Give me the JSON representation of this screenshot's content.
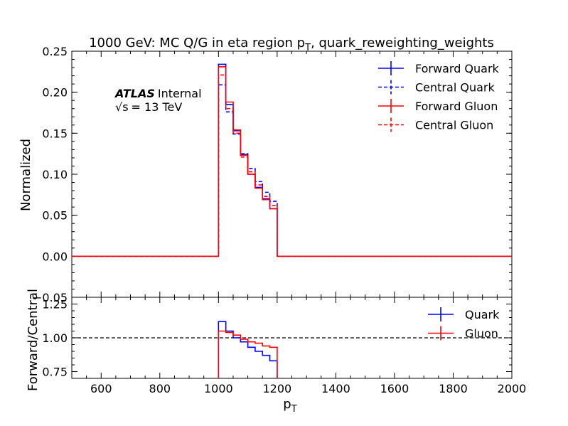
{
  "chart_data": [
    {
      "type": "line",
      "panel": "main",
      "title": {
        "main": "1000 GeV: MC Q/G in eta region p",
        "sub": "T",
        "rest": ", quark_reweighting_weights"
      },
      "ylabel": "Normalized",
      "xlim": [
        500,
        2000
      ],
      "ylim": [
        -0.05,
        0.25
      ],
      "y_ticks": [
        -0.05,
        0.0,
        0.05,
        0.1,
        0.15,
        0.2,
        0.25
      ],
      "y_tick_labels": [
        "−0.05",
        "0.00",
        "0.05",
        "0.10",
        "0.15",
        "0.20",
        "0.25"
      ],
      "annotation": {
        "atlas": "ATLAS",
        "internal": "Internal",
        "energy_sqrt": "√s",
        "energy": "= 13 TeV"
      },
      "legend_position": "top-right",
      "step_edges": [
        500,
        1000,
        1025,
        1050,
        1075,
        1100,
        1125,
        1150,
        1175,
        1200,
        2000
      ],
      "series": [
        {
          "name": "Forward Quark",
          "color": "#0000ff",
          "style": "solid",
          "values": [
            0,
            0.234,
            0.185,
            0.153,
            0.124,
            0.1,
            0.084,
            0.07,
            0.058,
            0
          ]
        },
        {
          "name": "Central Quark",
          "color": "#0000ff",
          "style": "dashed",
          "values": [
            0,
            0.209,
            0.176,
            0.149,
            0.125,
            0.107,
            0.091,
            0.078,
            0.067,
            0
          ]
        },
        {
          "name": "Forward Gluon",
          "color": "#ff0000",
          "style": "solid",
          "values": [
            0,
            0.231,
            0.188,
            0.154,
            0.123,
            0.1,
            0.083,
            0.069,
            0.058,
            0
          ]
        },
        {
          "name": "Central Gluon",
          "color": "#ff0000",
          "style": "dashed",
          "values": [
            0,
            0.221,
            0.18,
            0.15,
            0.121,
            0.103,
            0.087,
            0.073,
            0.062,
            0
          ]
        }
      ]
    },
    {
      "type": "line",
      "panel": "ratio",
      "xlabel": {
        "main": "p",
        "sub": "T"
      },
      "ylabel": "Forward/Central",
      "xlim": [
        500,
        2000
      ],
      "ylim": [
        0.7,
        1.3
      ],
      "x_ticks": [
        600,
        800,
        1000,
        1200,
        1400,
        1600,
        1800,
        2000
      ],
      "x_tick_labels": [
        "600",
        "800",
        "1000",
        "1200",
        "1400",
        "1600",
        "1800",
        "2000"
      ],
      "y_ticks": [
        0.75,
        1.0,
        1.25
      ],
      "y_tick_labels": [
        "0.75",
        "1.00",
        "1.25"
      ],
      "reference_line": 1.0,
      "legend_position": "top-right",
      "step_edges": [
        1000,
        1025,
        1050,
        1075,
        1100,
        1125,
        1150,
        1175,
        1200
      ],
      "series": [
        {
          "name": "Quark",
          "color": "#0000ff",
          "style": "solid",
          "values": [
            1.12,
            1.05,
            1.0,
            0.97,
            0.93,
            0.9,
            0.87,
            0.83
          ]
        },
        {
          "name": "Gluon",
          "color": "#ff0000",
          "style": "solid",
          "values": [
            1.05,
            1.04,
            1.02,
            0.99,
            0.97,
            0.96,
            0.94,
            0.93
          ]
        }
      ]
    }
  ]
}
